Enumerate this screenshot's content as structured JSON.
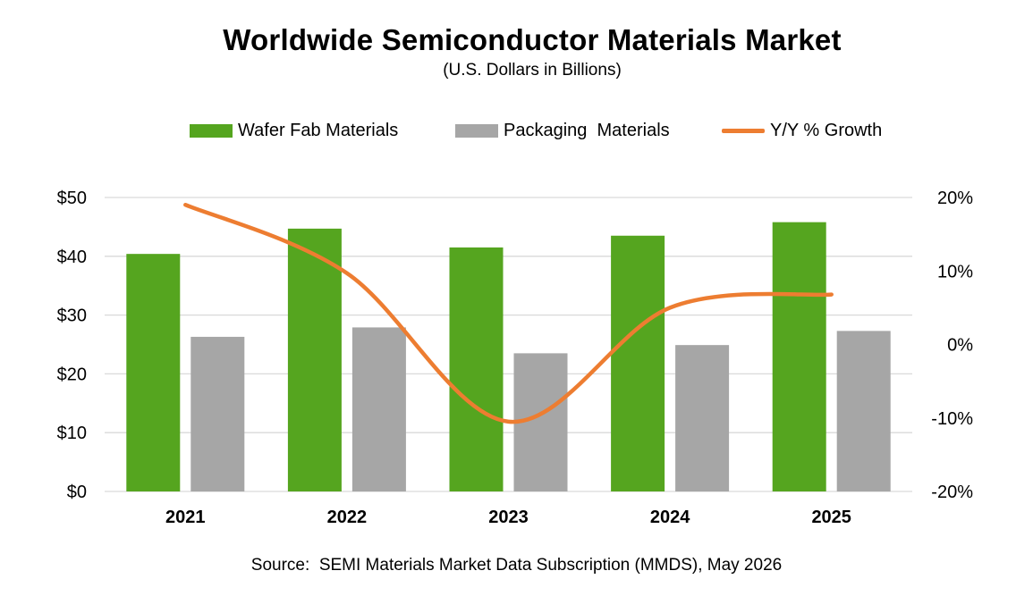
{
  "chart_data": {
    "type": "bar",
    "title": "Worldwide Semiconductor Materials Market",
    "subtitle": "(U.S. Dollars in Billions)",
    "categories": [
      "2021",
      "2022",
      "2023",
      "2024",
      "2025"
    ],
    "series": [
      {
        "name": "Wafer Fab Materials",
        "kind": "bar",
        "axis": "left",
        "color": "#55a51f",
        "values": [
          40.4,
          44.7,
          41.5,
          43.5,
          45.8
        ]
      },
      {
        "name": "Packaging  Materials",
        "kind": "bar",
        "axis": "left",
        "color": "#a6a6a6",
        "values": [
          26.3,
          27.9,
          23.5,
          24.9,
          27.3
        ]
      },
      {
        "name": "Y/Y % Growth",
        "kind": "line",
        "axis": "right",
        "color": "#ed7d31",
        "values": [
          19.0,
          9.7,
          -10.5,
          5.0,
          6.8
        ]
      }
    ],
    "ylim": [
      0,
      50
    ],
    "y2lim": [
      -20,
      20
    ],
    "yticks": [
      "$0",
      "$10",
      "$20",
      "$30",
      "$40",
      "$50"
    ],
    "y2ticks": [
      "-20%",
      "-10%",
      "0%",
      "10%",
      "20%"
    ],
    "grid": true,
    "legend_position": "top"
  },
  "source": "Source:  SEMI Materials Market Data Subscription (MMDS), May 2026"
}
